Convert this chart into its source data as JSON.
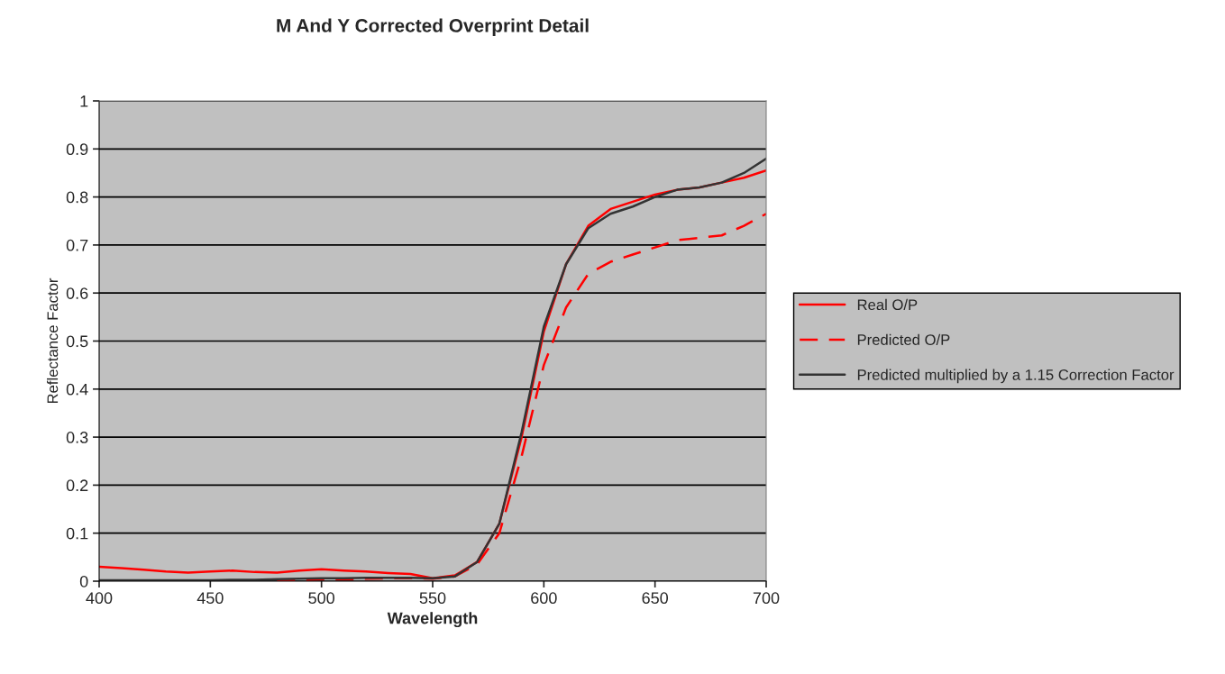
{
  "chart_data": {
    "type": "line",
    "title": "M And Y Corrected Overprint Detail",
    "xlabel": "Wavelength",
    "ylabel": "Reflectance Factor",
    "x": [
      400,
      410,
      420,
      430,
      440,
      450,
      460,
      470,
      480,
      490,
      500,
      510,
      520,
      530,
      540,
      550,
      560,
      570,
      580,
      590,
      600,
      610,
      620,
      630,
      640,
      650,
      660,
      670,
      680,
      690,
      700
    ],
    "series": [
      {
        "name": "Real O/P",
        "color": "#ff0000",
        "line_style": "solid",
        "values": [
          0.03,
          0.027,
          0.024,
          0.02,
          0.018,
          0.02,
          0.022,
          0.019,
          0.018,
          0.022,
          0.025,
          0.022,
          0.02,
          0.017,
          0.015,
          0.006,
          0.012,
          0.04,
          0.12,
          0.3,
          0.52,
          0.66,
          0.74,
          0.775,
          0.79,
          0.805,
          0.815,
          0.82,
          0.83,
          0.84,
          0.855
        ]
      },
      {
        "name": "Predicted O/P",
        "color": "#ff0000",
        "line_style": "dashed",
        "values": [
          null,
          null,
          null,
          null,
          null,
          null,
          null,
          null,
          0.0,
          0.002,
          0.004,
          0.004,
          0.005,
          0.006,
          0.006,
          0.005,
          0.01,
          0.035,
          0.1,
          0.26,
          0.45,
          0.57,
          0.64,
          0.665,
          0.68,
          0.695,
          0.71,
          0.715,
          0.72,
          0.74,
          0.765
        ]
      },
      {
        "name": "Predicted multiplied by a 1.15 Correction Factor",
        "color": "#333333",
        "line_style": "solid",
        "values": [
          0.002,
          0.002,
          0.002,
          0.002,
          0.002,
          0.002,
          0.003,
          0.003,
          0.004,
          0.005,
          0.006,
          0.006,
          0.007,
          0.007,
          0.007,
          0.006,
          0.01,
          0.04,
          0.12,
          0.31,
          0.53,
          0.66,
          0.735,
          0.765,
          0.78,
          0.8,
          0.815,
          0.82,
          0.83,
          0.85,
          0.88
        ]
      }
    ],
    "xlim": [
      400,
      700
    ],
    "xticks": [
      400,
      450,
      500,
      550,
      600,
      650,
      700
    ],
    "ylim": [
      0,
      1
    ],
    "yticks": [
      0,
      0.1,
      0.2,
      0.3,
      0.4,
      0.5,
      0.6,
      0.7,
      0.8,
      0.9,
      1
    ],
    "grid": "y",
    "legend": "right",
    "marker": "none"
  }
}
